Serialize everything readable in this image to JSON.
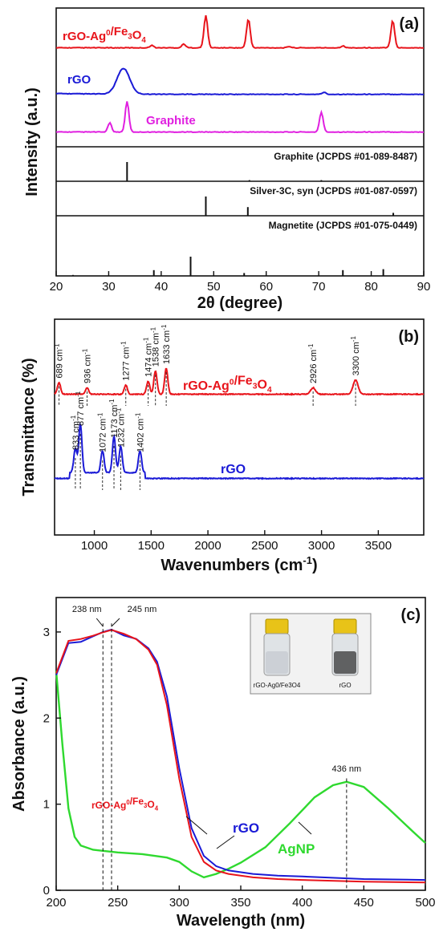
{
  "chart_data": [
    {
      "panel": "(a)",
      "type": "line",
      "xlabel": "2θ (degree)",
      "ylabel": "Intensity (a.u.)",
      "xlim": [
        20,
        90
      ],
      "xticks": [
        20,
        30,
        40,
        50,
        60,
        70,
        80,
        90
      ],
      "series": [
        {
          "name": "rGO-Ag0/Fe3O4",
          "label_main": "rGO-Ag",
          "label_sup": "0",
          "label_mid": "/Fe",
          "label_sub1": "3",
          "label_mid2": "O",
          "label_sub2": "4",
          "color": "#e8141b",
          "peaks": [
            [
              38.2,
              0.08
            ],
            [
              44.3,
              0.12
            ],
            [
              48.5,
              1.0
            ],
            [
              56.6,
              0.9
            ],
            [
              64.4,
              0.04
            ],
            [
              74.6,
              0.06
            ],
            [
              84.1,
              0.85
            ]
          ]
        },
        {
          "name": "rGO",
          "color": "#1a1ad6",
          "peaks": [
            [
              32.8,
              1.0
            ],
            [
              71.0,
              0.08
            ]
          ]
        },
        {
          "name": "Graphite",
          "color": "#e020e0",
          "peaks": [
            [
              30.2,
              0.3
            ],
            [
              33.5,
              1.0
            ],
            [
              70.5,
              0.65
            ]
          ]
        }
      ],
      "references": [
        {
          "name": "Graphite (JCPDS #01-089-8487)",
          "lines": [
            [
              33.5,
              1.0
            ],
            [
              56.8,
              0.06
            ],
            [
              70.5,
              0.06
            ]
          ]
        },
        {
          "name": "Silver-3C, syn (JCPDS #01-087-0597)",
          "lines": [
            [
              48.5,
              1.0
            ],
            [
              56.5,
              0.45
            ],
            [
              84.2,
              0.15
            ]
          ]
        },
        {
          "name": "Magnetite (JCPDS #01-075-0449)",
          "lines": [
            [
              23.2,
              0.05
            ],
            [
              38.6,
              0.3
            ],
            [
              45.6,
              1.0
            ],
            [
              55.8,
              0.15
            ],
            [
              74.6,
              0.3
            ],
            [
              82.3,
              0.35
            ]
          ]
        }
      ]
    },
    {
      "panel": "(b)",
      "type": "line",
      "xlabel": "Wavenumbers (cm",
      "xlabel_sup": "-1",
      "xlabel_end": ")",
      "ylabel": "Transmittance (%)",
      "xlim": [
        650,
        3900
      ],
      "xticks": [
        1000,
        1500,
        2000,
        2500,
        3000,
        3500
      ],
      "series": [
        {
          "name": "rGO-Ag0/Fe3O4",
          "label_main": "rGO-Ag",
          "label_sup": "0",
          "label_mid": "/Fe",
          "label_sub1": "3",
          "label_mid2": "O",
          "label_sub2": "4",
          "color": "#e8141b",
          "peaks": [
            [
              689,
              0.45
            ],
            [
              936,
              0.25
            ],
            [
              1277,
              0.35
            ],
            [
              1474,
              0.5
            ],
            [
              1538,
              0.9
            ],
            [
              1633,
              1.0
            ],
            [
              2926,
              0.25
            ],
            [
              3300,
              0.55
            ]
          ],
          "peak_labels": [
            "689 cm",
            "936 cm",
            "1277 cm",
            "1474 cm",
            "1538 cm",
            "1633 cm",
            "2926 cm",
            "3300 cm"
          ]
        },
        {
          "name": "rGO",
          "color": "#1a1ad6",
          "peaks": [
            [
              833,
              0.5
            ],
            [
              877,
              1.0
            ],
            [
              1072,
              0.45
            ],
            [
              1173,
              0.75
            ],
            [
              1232,
              0.55
            ],
            [
              1402,
              0.45
            ]
          ],
          "peak_labels": [
            "833 cm",
            "877 cm",
            "1072 cm",
            "1173 cm",
            "1232 cm",
            "1402 cm"
          ]
        }
      ],
      "peak_label_sup": "-1"
    },
    {
      "panel": "(c)",
      "type": "line",
      "xlabel": "Wavelength (nm)",
      "ylabel": "Absorbance (a.u.)",
      "xlim": [
        200,
        500
      ],
      "ylim": [
        0,
        3.4
      ],
      "xticks": [
        200,
        250,
        300,
        350,
        400,
        450,
        500
      ],
      "yticks": [
        0,
        1,
        2,
        3
      ],
      "series": [
        {
          "name": "rGO-Ag0/Fe3O4",
          "label_main": "rGO-Ag",
          "label_sup": "0",
          "label_mid": "/Fe",
          "label_sub1": "3",
          "label_mid2": "O",
          "label_sub2": "4",
          "color": "#e8141b",
          "x": [
            200,
            210,
            220,
            230,
            238,
            245,
            255,
            265,
            275,
            282,
            290,
            300,
            310,
            320,
            330,
            340,
            360,
            380,
            400,
            450,
            500
          ],
          "y": [
            2.52,
            2.88,
            2.9,
            2.97,
            3.02,
            3.01,
            2.96,
            2.9,
            2.82,
            2.65,
            2.15,
            1.3,
            0.62,
            0.33,
            0.23,
            0.19,
            0.15,
            0.13,
            0.12,
            0.1,
            0.09
          ]
        },
        {
          "name": "rGO",
          "color": "#1a1ad6",
          "x": [
            200,
            210,
            220,
            230,
            238,
            245,
            255,
            265,
            275,
            282,
            290,
            300,
            310,
            320,
            330,
            340,
            360,
            380,
            400,
            450,
            500
          ],
          "y": [
            2.5,
            2.86,
            2.88,
            2.95,
            3.0,
            3.0,
            2.95,
            2.9,
            2.83,
            2.68,
            2.25,
            1.42,
            0.72,
            0.4,
            0.28,
            0.23,
            0.19,
            0.17,
            0.16,
            0.13,
            0.12
          ]
        },
        {
          "name": "AgNP",
          "color": "#2fd92f",
          "x": [
            200,
            205,
            210,
            215,
            220,
            230,
            250,
            270,
            290,
            300,
            310,
            320,
            330,
            340,
            350,
            370,
            390,
            410,
            425,
            436,
            450,
            470,
            490,
            500
          ],
          "y": [
            2.55,
            1.7,
            0.95,
            0.62,
            0.52,
            0.47,
            0.44,
            0.42,
            0.38,
            0.33,
            0.22,
            0.15,
            0.19,
            0.25,
            0.32,
            0.5,
            0.78,
            1.08,
            1.22,
            1.26,
            1.2,
            0.95,
            0.68,
            0.55
          ]
        }
      ],
      "annotations": [
        {
          "text": "238 nm",
          "x": 238
        },
        {
          "text": "245 nm",
          "x": 245
        },
        {
          "text": "436 nm",
          "x": 436
        }
      ],
      "inset": {
        "vials": [
          "rGO-Ag0/Fe3O4",
          "rGO"
        ]
      }
    }
  ]
}
